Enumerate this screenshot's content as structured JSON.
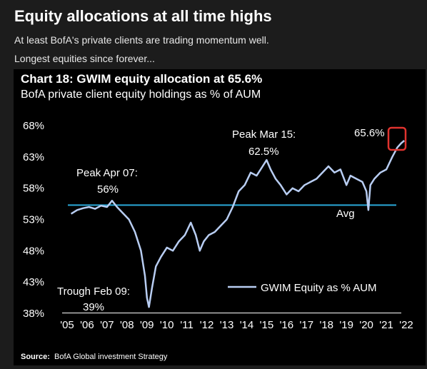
{
  "header": {
    "title": "Equity allocations at all time highs",
    "line1": "At least BofA's private clients are trading momentum well.",
    "line2": "Longest equities since forever..."
  },
  "chart_data": {
    "type": "line",
    "title": "Chart 18: GWIM equity allocation at 65.6%",
    "subtitle": "BofA private client equity holdings as % of AUM",
    "source_label": "Source:",
    "source_text": "BofA Global investment Strategy",
    "ylim": [
      38,
      68
    ],
    "y_ticks": [
      68,
      63,
      58,
      53,
      48,
      43,
      38
    ],
    "y_tick_labels": [
      "68%",
      "63%",
      "58%",
      "53%",
      "48%",
      "43%",
      "38%"
    ],
    "xlim": [
      2005,
      2022
    ],
    "x_ticks": [
      2005,
      2006,
      2007,
      2008,
      2009,
      2010,
      2011,
      2012,
      2013,
      2014,
      2015,
      2016,
      2017,
      2018,
      2019,
      2020,
      2021,
      2022
    ],
    "x_tick_labels": [
      "'05",
      "'06",
      "'07",
      "'08",
      "'09",
      "'10",
      "'11",
      "'12",
      "'13",
      "'14",
      "'15",
      "'16",
      "'17",
      "'18",
      "'19",
      "'20",
      "'21",
      "'22"
    ],
    "series": [
      {
        "name": "GWIM Equity as % AUM",
        "color": "#b8cdf2",
        "x": [
          2005.2,
          2005.5,
          2005.8,
          2006.1,
          2006.4,
          2006.7,
          2007.0,
          2007.25,
          2007.5,
          2007.8,
          2008.1,
          2008.4,
          2008.7,
          2008.9,
          2009.0,
          2009.1,
          2009.25,
          2009.45,
          2009.7,
          2010.0,
          2010.3,
          2010.6,
          2010.9,
          2011.2,
          2011.45,
          2011.65,
          2011.85,
          2012.1,
          2012.4,
          2012.7,
          2013.0,
          2013.3,
          2013.6,
          2013.9,
          2014.2,
          2014.5,
          2014.8,
          2015.0,
          2015.2,
          2015.45,
          2015.7,
          2016.0,
          2016.3,
          2016.6,
          2016.9,
          2017.2,
          2017.5,
          2017.8,
          2018.1,
          2018.4,
          2018.7,
          2019.0,
          2019.2,
          2019.5,
          2019.8,
          2020.0,
          2020.1,
          2020.2,
          2020.4,
          2020.7,
          2021.0,
          2021.3,
          2021.55,
          2021.75,
          2021.9
        ],
        "values": [
          53.9,
          54.5,
          54.8,
          55.0,
          54.7,
          55.2,
          55.0,
          56.0,
          55.0,
          54.0,
          53.0,
          51.0,
          48.0,
          44.0,
          40.5,
          39.0,
          42.0,
          45.5,
          47.0,
          48.5,
          48.0,
          49.5,
          50.5,
          52.5,
          50.5,
          48.0,
          49.5,
          50.5,
          51.0,
          52.0,
          53.0,
          55.0,
          57.5,
          58.5,
          60.5,
          60.0,
          61.5,
          62.5,
          61.0,
          59.5,
          58.5,
          57.0,
          58.0,
          57.5,
          58.5,
          59.0,
          59.5,
          60.5,
          61.5,
          60.5,
          61.0,
          58.5,
          60.0,
          59.5,
          59.0,
          57.5,
          54.5,
          58.5,
          59.5,
          60.5,
          61.0,
          63.0,
          64.5,
          65.2,
          65.6
        ]
      }
    ],
    "avg_value": 55.3,
    "avg_label": "Avg",
    "avg_color": "#2aa8d8",
    "annotations": {
      "peak_apr07_a": "Peak Apr 07:",
      "peak_apr07_b": "56%",
      "peak_mar15_a": "Peak Mar 15:",
      "peak_mar15_b": "62.5%",
      "trough_a": "Trough Feb 09:",
      "trough_b": "39%",
      "last": "65.6%"
    },
    "highlight_color": "#e0332e"
  }
}
